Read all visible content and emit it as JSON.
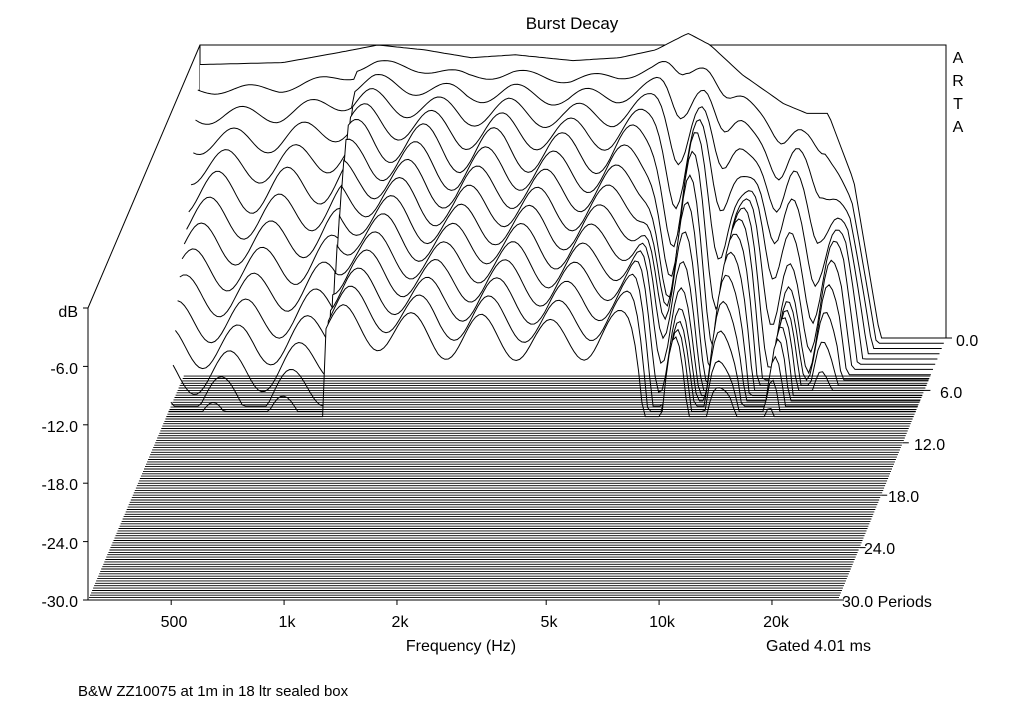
{
  "chart_data": {
    "type": "waterfall",
    "title": "Burst Decay",
    "brand_letters": [
      "A",
      "R",
      "T",
      "A"
    ],
    "z_axis_title": "dB",
    "z_ticks": [
      "-6.0",
      "-12.0",
      "-18.0",
      "-24.0",
      "-30.0"
    ],
    "z_range": [
      -30,
      0
    ],
    "x_axis_title": "Frequency (Hz)",
    "x_scale": "log",
    "x_range": [
      300,
      30000
    ],
    "x_ticks": [
      {
        "label": "500",
        "value": 500
      },
      {
        "label": "1k",
        "value": 1000
      },
      {
        "label": "2k",
        "value": 2000
      },
      {
        "label": "5k",
        "value": 5000
      },
      {
        "label": "10k",
        "value": 10000
      },
      {
        "label": "20k",
        "value": 20000
      }
    ],
    "depth_axis_title": "Periods",
    "depth_ticks": [
      {
        "label": "0.0",
        "value": 0
      },
      {
        "label": "6.0",
        "value": 6
      },
      {
        "label": "12.0",
        "value": 12
      },
      {
        "label": "18.0",
        "value": 18
      },
      {
        "label": "24.0",
        "value": 24
      },
      {
        "label": "30.0 Periods",
        "value": 30
      }
    ],
    "depth_range": [
      0,
      30
    ],
    "gate_text": "Gated 4.01 ms",
    "caption": "B&W ZZ10075 at 1m in 18 ltr sealed box",
    "slice_count": 111,
    "slice_periods": [
      0,
      0.6,
      1.2,
      1.8,
      2.4,
      3.0,
      3.6,
      4.2,
      4.8,
      5.4,
      6.0,
      6.6,
      7.2,
      7.8,
      8.4,
      9.0
    ],
    "initial_response_db": [
      {
        "f": 300,
        "db": -2.0
      },
      {
        "f": 500,
        "db": -1.8
      },
      {
        "f": 700,
        "db": -0.8
      },
      {
        "f": 900,
        "db": 0
      },
      {
        "f": 1200,
        "db": -0.5
      },
      {
        "f": 1600,
        "db": -1.3
      },
      {
        "f": 2100,
        "db": -1.0
      },
      {
        "f": 3000,
        "db": -1.6
      },
      {
        "f": 4000,
        "db": -1.3
      },
      {
        "f": 5000,
        "db": -0.5
      },
      {
        "f": 6100,
        "db": 1.2
      },
      {
        "f": 7000,
        "db": 0
      },
      {
        "f": 8500,
        "db": -3.0
      },
      {
        "f": 11000,
        "db": -6.0
      },
      {
        "f": 12700,
        "db": -7.0
      },
      {
        "f": 14500,
        "db": -7.0
      },
      {
        "f": 17000,
        "db": -14
      },
      {
        "f": 20000,
        "db": -30
      }
    ],
    "decay_notches_hz": [
      6000,
      7800,
      11000,
      14200
    ]
  }
}
